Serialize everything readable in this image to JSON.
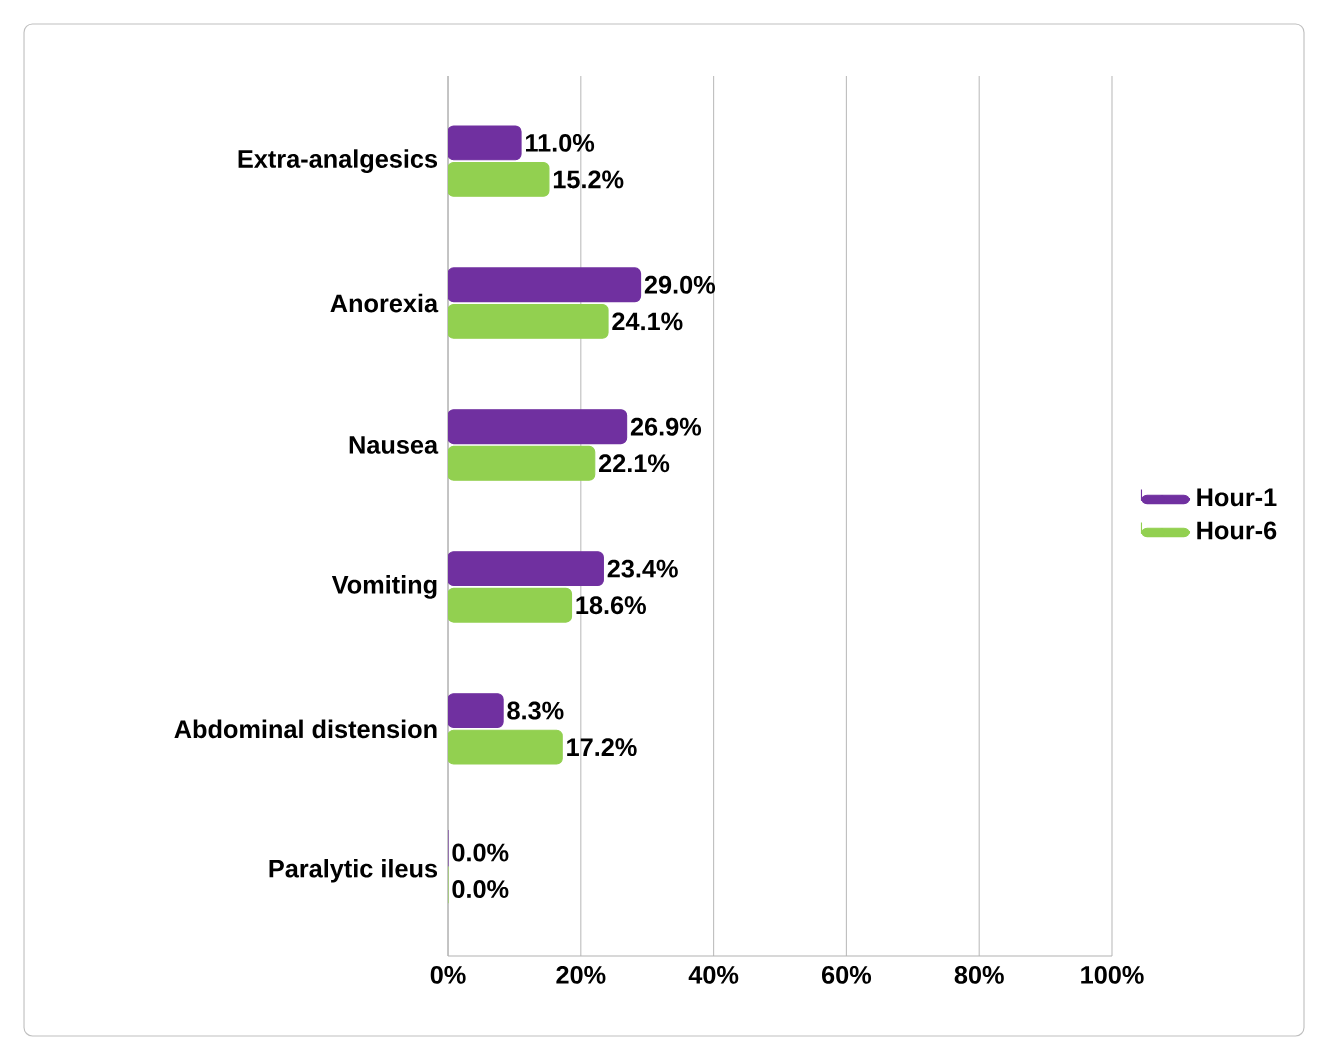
{
  "chart_data": {
    "type": "bar",
    "orientation": "horizontal",
    "categories": [
      "Extra-analgesics",
      "Anorexia",
      "Nausea",
      "Vomiting",
      "Abdominal distension",
      "Paralytic ileus"
    ],
    "series": [
      {
        "name": "Hour-1",
        "color": "#7030a0",
        "values": [
          11.0,
          29.0,
          26.9,
          23.4,
          8.3,
          0.0
        ],
        "value_labels": [
          "11.0%",
          "29.0%",
          "26.9%",
          "23.4%",
          "8.3%",
          "0.0%"
        ]
      },
      {
        "name": "Hour-6",
        "color": "#92d050",
        "values": [
          15.2,
          24.1,
          22.1,
          18.6,
          17.2,
          0.0
        ],
        "value_labels": [
          "15.2%",
          "24.1%",
          "22.1%",
          "18.6%",
          "17.2%",
          "0.0%"
        ]
      }
    ],
    "xlim": [
      0,
      100
    ],
    "xticks": [
      {
        "value": 0,
        "label": "0%"
      },
      {
        "value": 20,
        "label": "20%"
      },
      {
        "value": 40,
        "label": "40%"
      },
      {
        "value": 60,
        "label": "60%"
      },
      {
        "value": 80,
        "label": "80%"
      },
      {
        "value": 100,
        "label": "100%"
      }
    ],
    "grid": "x",
    "legend": "right"
  }
}
